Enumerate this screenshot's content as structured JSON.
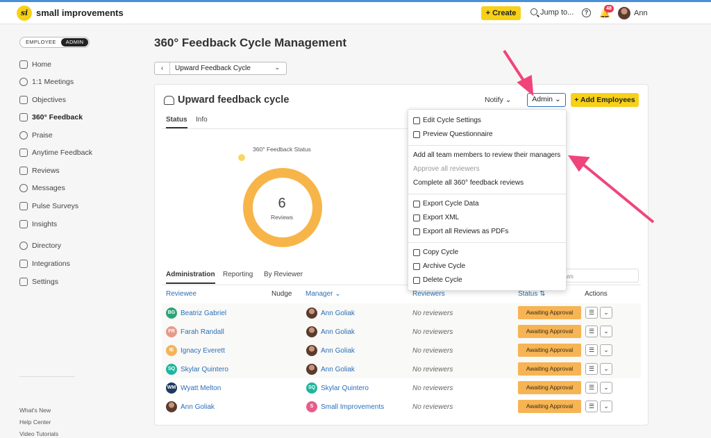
{
  "topbar": {
    "logo_text": "si",
    "brand": "small improvements",
    "create_label": "+ Create",
    "jump_label": "Jump to...",
    "notif_count": "48",
    "user_name": "Ann"
  },
  "sidebar": {
    "toggle": [
      "EMPLOYEE",
      "ADMIN"
    ],
    "items": [
      {
        "label": "Home",
        "icon": "home-icon"
      },
      {
        "label": "1:1 Meetings",
        "icon": "meetings-icon"
      },
      {
        "label": "Objectives",
        "icon": "target-icon"
      },
      {
        "label": "360° Feedback",
        "icon": "people-icon"
      },
      {
        "label": "Praise",
        "icon": "praise-icon"
      },
      {
        "label": "Anytime Feedback",
        "icon": "feedback-icon"
      },
      {
        "label": "Reviews",
        "icon": "document-icon"
      },
      {
        "label": "Messages",
        "icon": "chat-icon"
      },
      {
        "label": "Pulse Surveys",
        "icon": "pulse-icon"
      },
      {
        "label": "Insights",
        "icon": "chart-icon"
      },
      {
        "label": "Directory",
        "icon": "directory-icon"
      },
      {
        "label": "Integrations",
        "icon": "grid-icon"
      },
      {
        "label": "Settings",
        "icon": "gear-icon"
      }
    ],
    "footer": [
      "What's New",
      "Help Center",
      "Video Tutorials"
    ]
  },
  "page": {
    "title": "360° Feedback Cycle Management",
    "cycle_select": "Upward Feedback Cycle"
  },
  "card": {
    "title": "Upward feedback cycle",
    "tabs": [
      "Status",
      "Info"
    ],
    "notify_label": "Notify",
    "admin_label": "Admin",
    "add_label": "+ Add Employees",
    "status_title": "360° Feedback Status",
    "donut_value": "6",
    "donut_caption": "Reviews",
    "subtabs": [
      "Administration",
      "Reporting",
      "By Reviewer"
    ],
    "search_placeholder": "ws"
  },
  "table": {
    "headers": {
      "reviewee": "Reviewee",
      "nudge": "Nudge",
      "manager": "Manager",
      "reviewers": "Reviewers",
      "status": "Status",
      "actions": "Actions"
    },
    "rows": [
      {
        "reviewee": "Beatriz Gabriel",
        "initials": "BG",
        "color": "#2aa57a",
        "manager": "Ann Goliak",
        "mgr_initials": "",
        "mgr_color": "",
        "reviewers": "No reviewers",
        "status": "Awaiting Approval"
      },
      {
        "reviewee": "Farah Randall",
        "initials": "FR",
        "color": "#e59a8a",
        "manager": "Ann Goliak",
        "mgr_initials": "",
        "mgr_color": "",
        "reviewers": "No reviewers",
        "status": "Awaiting Approval"
      },
      {
        "reviewee": "Ignacy Everett",
        "initials": "IE",
        "color": "#f2b45a",
        "manager": "Ann Goliak",
        "mgr_initials": "",
        "mgr_color": "",
        "reviewers": "No reviewers",
        "status": "Awaiting Approval"
      },
      {
        "reviewee": "Skylar Quintero",
        "initials": "SQ",
        "color": "#1fb6a0",
        "manager": "Ann Goliak",
        "mgr_initials": "",
        "mgr_color": "",
        "reviewers": "No reviewers",
        "status": "Awaiting Approval"
      },
      {
        "reviewee": "Wyatt Melton",
        "initials": "WM",
        "color": "#1f3a5f",
        "manager": "Skylar Quintero",
        "mgr_initials": "SQ",
        "mgr_color": "#1fb6a0",
        "reviewers": "No reviewers",
        "status": "Awaiting Approval"
      },
      {
        "reviewee": "Ann Goliak",
        "initials": "",
        "color": "",
        "manager": "Small Improvements",
        "mgr_initials": "S",
        "mgr_color": "#e85c8a",
        "reviewers": "No reviewers",
        "status": "Awaiting Approval"
      }
    ]
  },
  "dropdown": {
    "groups": [
      [
        {
          "label": "Edit Cycle Settings",
          "icon": "pencil-icon"
        },
        {
          "label": "Preview Questionnaire",
          "icon": "preview-icon"
        }
      ],
      [
        {
          "label": "Add all team members to review their managers",
          "icon": ""
        },
        {
          "label": "Approve all reviewers",
          "icon": "",
          "disabled": true
        },
        {
          "label": "Complete all 360° feedback reviews",
          "icon": ""
        }
      ],
      [
        {
          "label": "Export Cycle Data",
          "icon": "export-icon"
        },
        {
          "label": "Export XML",
          "icon": "export-icon"
        },
        {
          "label": "Export all Reviews as PDFs",
          "icon": "export-icon"
        }
      ],
      [
        {
          "label": "Copy Cycle",
          "icon": "copy-icon"
        },
        {
          "label": "Archive Cycle",
          "icon": "archive-icon"
        },
        {
          "label": "Delete Cycle",
          "icon": "trash-icon"
        }
      ]
    ]
  },
  "colors": {
    "accent": "#f7d117",
    "link": "#2b6fb8",
    "status": "#f6b454",
    "donut": "#f7b549",
    "arrow": "#f0457a"
  }
}
